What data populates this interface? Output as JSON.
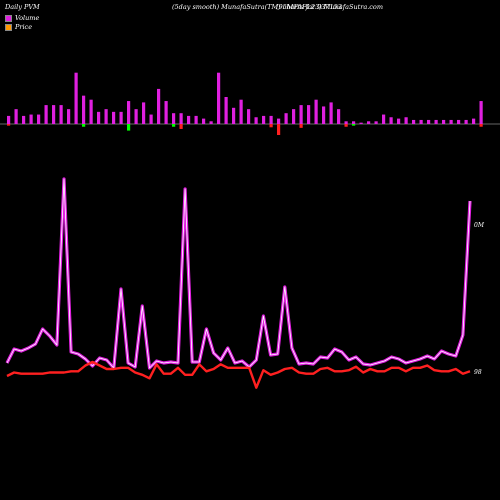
{
  "header": {
    "left": "Daily PVM",
    "middle": "(5day smooth) MunafaSutra(TM) charts for 937153",
    "right": "(95MFAFL23) MunafaSutra.com"
  },
  "legend": [
    {
      "label": "Volume",
      "color": "#e020e0"
    },
    {
      "label": "Price",
      "color": "#ff9900"
    }
  ],
  "axis_labels": {
    "top": "0M",
    "bottom": "98"
  },
  "colors": {
    "volume": "#e020e0",
    "up": "#00ff00",
    "down": "#ff2020",
    "price": "#ff2020",
    "baseline": "#888888"
  },
  "chart_data": [
    {
      "type": "bar",
      "title": "Daily PVM",
      "series": [
        {
          "name": "Volume",
          "values": [
            6,
            11,
            6,
            7,
            7,
            14,
            14,
            14,
            11,
            38,
            21,
            18,
            9,
            11,
            9,
            9,
            17,
            11,
            16,
            7,
            26,
            17,
            8,
            8,
            6,
            6,
            4,
            2,
            38,
            20,
            12,
            18,
            11,
            5,
            6,
            6,
            4,
            8,
            11,
            14,
            14,
            18,
            13,
            16,
            11,
            2,
            2,
            1,
            2,
            2,
            7,
            5,
            4,
            5,
            3,
            3,
            3,
            3,
            3,
            3,
            3,
            3,
            4,
            17
          ]
        },
        {
          "name": "Price direction",
          "values": [
            -3,
            0,
            0,
            0,
            0,
            0,
            0,
            0,
            0,
            0,
            -5,
            0,
            0,
            0,
            0,
            0,
            -12,
            0,
            0,
            0,
            0,
            0,
            -5,
            -9,
            0,
            0,
            0,
            0,
            0,
            0,
            0,
            0,
            0,
            0,
            0,
            -6,
            -20,
            0,
            0,
            -7,
            0,
            0,
            0,
            0,
            0,
            -5,
            -3,
            0,
            0,
            0,
            0,
            0,
            0,
            0,
            0,
            0,
            0,
            0,
            0,
            0,
            0,
            0,
            0,
            -5
          ]
        }
      ]
    },
    {
      "type": "line",
      "series": [
        {
          "name": "Volume",
          "values": [
            1.2,
            2.6,
            2.4,
            2.7,
            3.1,
            4.6,
            3.9,
            3.0,
            19.6,
            2.3,
            2.1,
            1.6,
            0.9,
            1.7,
            1.5,
            0.7,
            8.6,
            1.2,
            0.8,
            6.9,
            0.7,
            1.4,
            1.2,
            1.3,
            1.2,
            18.6,
            1.3,
            1.3,
            4.6,
            2.2,
            1.5,
            2.7,
            1.2,
            1.4,
            0.8,
            1.5,
            5.9,
            2.0,
            2.1,
            8.8,
            2.7,
            1.1,
            1.2,
            1.1,
            1.8,
            1.7,
            2.6,
            2.3,
            1.5,
            1.8,
            1.1,
            1.0,
            1.2,
            1.4,
            1.8,
            1.6,
            1.2,
            1.4,
            1.6,
            1.9,
            1.6,
            2.4,
            2.1,
            1.9,
            4.0,
            17.4
          ]
        },
        {
          "name": "Price",
          "values": [
            98.2,
            98.5,
            98.4,
            98.4,
            98.4,
            98.4,
            98.5,
            98.5,
            98.5,
            98.6,
            98.6,
            99.1,
            99.4,
            99.1,
            98.8,
            98.8,
            98.9,
            98.9,
            98.5,
            98.3,
            98.0,
            99.2,
            98.4,
            98.4,
            98.9,
            98.3,
            98.3,
            99.2,
            98.6,
            98.8,
            99.2,
            98.9,
            98.9,
            98.9,
            98.9,
            97.2,
            98.7,
            98.3,
            98.5,
            98.8,
            98.9,
            98.5,
            98.4,
            98.4,
            98.8,
            98.9,
            98.6,
            98.6,
            98.7,
            99.0,
            98.5,
            98.8,
            98.6,
            98.6,
            98.9,
            98.9,
            98.6,
            98.9,
            98.9,
            99.1,
            98.7,
            98.6,
            98.6,
            98.8,
            98.4,
            98.6
          ]
        }
      ]
    }
  ]
}
